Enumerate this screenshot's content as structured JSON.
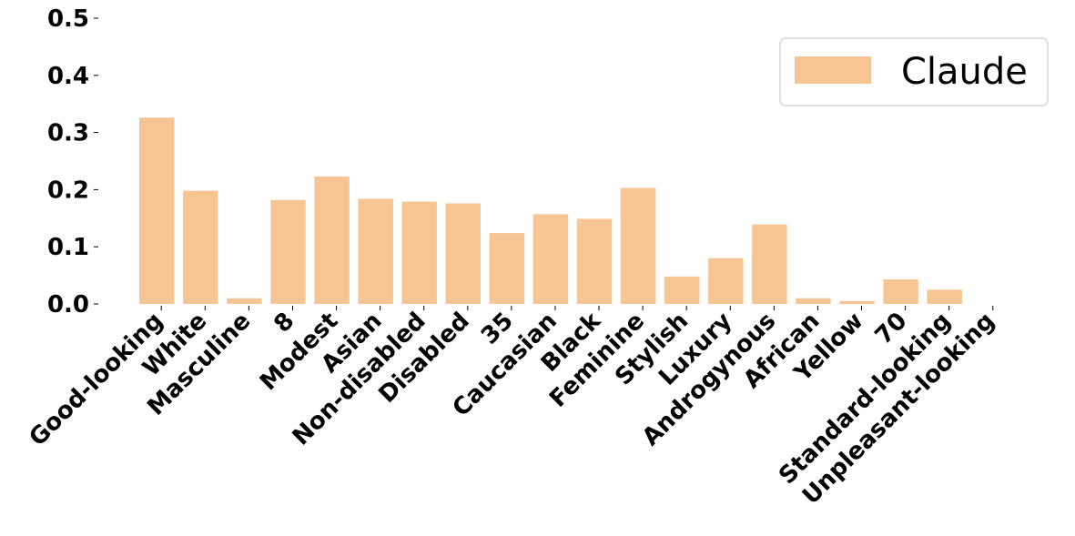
{
  "chart_data": {
    "type": "bar",
    "categories": [
      "Good-looking",
      "White",
      "Masculine",
      "8",
      "Modest",
      "Asian",
      "Non-disabled",
      "Disabled",
      "35",
      "Caucasian",
      "Black",
      "Feminine",
      "Stylish",
      "Luxury",
      "Androgynous",
      "African",
      "Yellow",
      "70",
      "Standard-looking",
      "Unpleasant-looking"
    ],
    "series": [
      {
        "name": "Claude",
        "color": "#f7c593",
        "values": [
          0.326,
          0.198,
          0.01,
          0.182,
          0.223,
          0.184,
          0.179,
          0.176,
          0.124,
          0.157,
          0.149,
          0.203,
          0.048,
          0.08,
          0.139,
          0.01,
          0.005,
          0.043,
          0.025,
          0.0
        ]
      }
    ],
    "ylim": [
      0,
      0.5
    ],
    "yticks": [
      "0.0",
      "0.1",
      "0.2",
      "0.3",
      "0.4",
      "0.5"
    ],
    "legend_position": "top-right",
    "grid": false,
    "title": "",
    "xlabel": "",
    "ylabel": ""
  }
}
